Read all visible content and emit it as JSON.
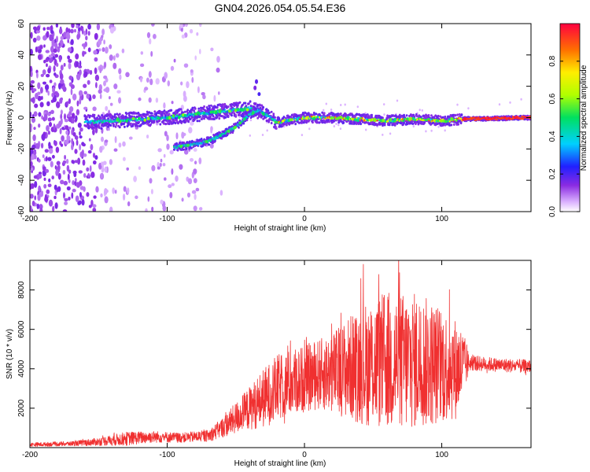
{
  "title": "GN04.2026.054.05.54.E36",
  "chart_data": [
    {
      "type": "heatmap",
      "xlabel": "Height of straight line (km)",
      "ylabel": "Frequency (Hz)",
      "xlim": [
        -200,
        165
      ],
      "ylim": [
        -60,
        60
      ],
      "xticks": [
        -200,
        -100,
        0,
        100
      ],
      "yticks": [
        -60,
        -40,
        -20,
        0,
        20,
        40,
        60
      ],
      "colorbar": {
        "label": "Normalized spectral amplitude",
        "range": [
          0,
          1
        ],
        "ticks": [
          0.0,
          0.2,
          0.4,
          0.6,
          0.8
        ],
        "tick_labels": [
          "0.0",
          "0.2",
          "0.4",
          "0.6",
          "0.8"
        ]
      },
      "features": [
        {
          "name": "main-band",
          "x": [
            -160,
            -140,
            -120,
            -100,
            -80,
            -60,
            -40,
            -30,
            -20,
            0,
            20,
            40,
            60,
            80,
            100,
            115,
            165
          ],
          "y": [
            -3,
            -2,
            -1,
            0,
            2,
            4,
            6,
            3,
            -3,
            0,
            0,
            -1,
            -2,
            -1,
            -2,
            -1,
            0
          ]
        },
        {
          "name": "lower-branch",
          "x": [
            -95,
            -80,
            -70,
            -60,
            -50,
            -40,
            -32
          ],
          "y": [
            -19,
            -17,
            -15,
            -11,
            -6,
            2,
            5
          ]
        },
        {
          "name": "peak-burst",
          "x": [
            -35
          ],
          "y": [
            23
          ]
        }
      ],
      "grid": false
    },
    {
      "type": "line",
      "xlabel": "Height of straight line (km)",
      "ylabel": "SNR (10 * v/v)",
      "xlim": [
        -200,
        165
      ],
      "ylim": [
        0,
        9500
      ],
      "xticks": [
        -200,
        -100,
        0,
        100
      ],
      "yticks": [
        2000,
        4000,
        6000,
        8000
      ],
      "color": "#f03030",
      "envelope": {
        "x": [
          -200,
          -170,
          -150,
          -130,
          -110,
          -90,
          -70,
          -60,
          -50,
          -40,
          -30,
          -20,
          -10,
          0,
          10,
          20,
          30,
          40,
          50,
          60,
          70,
          80,
          90,
          100,
          110,
          115,
          120,
          140,
          165
        ],
        "mean": [
          150,
          200,
          300,
          450,
          550,
          500,
          600,
          1000,
          1500,
          2000,
          2500,
          3000,
          3300,
          3500,
          3700,
          3800,
          4000,
          4200,
          4300,
          4400,
          4300,
          4400,
          4300,
          4200,
          4000,
          4100,
          4300,
          4200,
          4100
        ],
        "amp": [
          100,
          120,
          200,
          350,
          300,
          250,
          300,
          500,
          800,
          1100,
          1500,
          1700,
          1700,
          1700,
          1800,
          2000,
          2500,
          3000,
          3300,
          3600,
          3600,
          3500,
          3300,
          3000,
          2600,
          2000,
          400,
          350,
          350
        ]
      },
      "grid": false
    }
  ]
}
